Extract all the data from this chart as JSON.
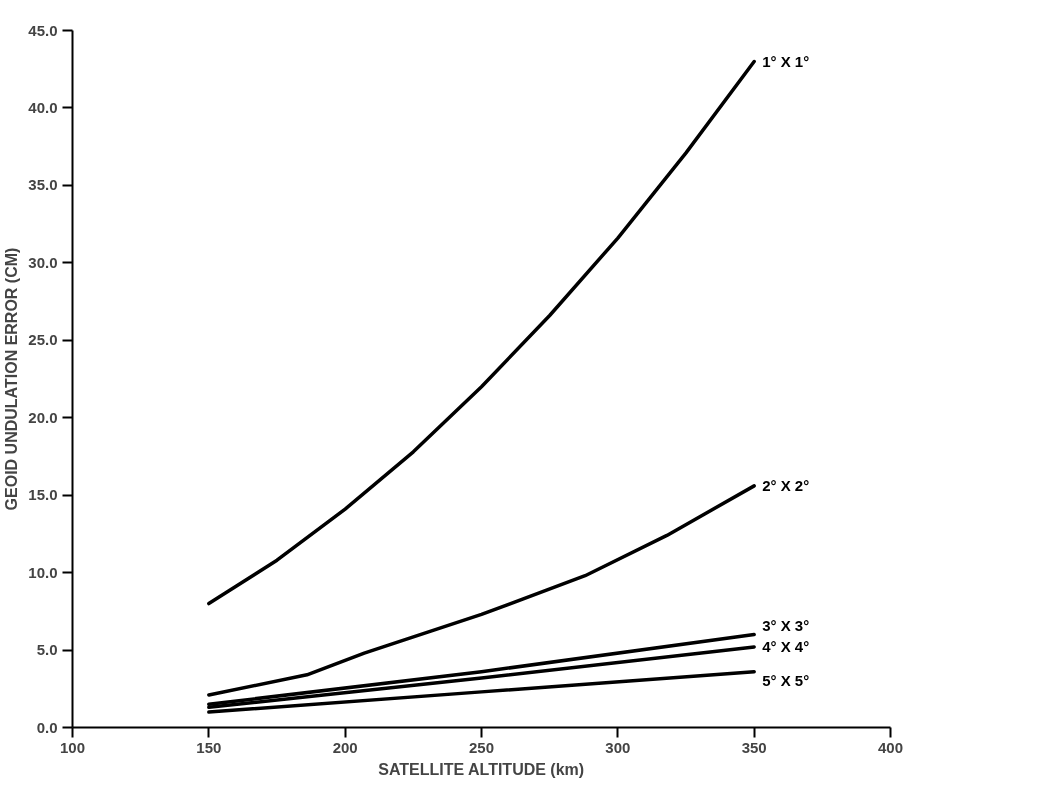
{
  "chart_data": {
    "type": "line",
    "xlabel": "SATELLITE ALTITUDE (km)",
    "ylabel": "GEOID UNDULATION ERROR (CM)",
    "xlim": [
      100,
      400
    ],
    "xticks": [
      100,
      150,
      200,
      250,
      300,
      350,
      400
    ],
    "ylim": [
      0,
      45
    ],
    "yticks": [
      {
        "value": 0,
        "label": "0.0"
      },
      {
        "value": 5,
        "label": "5.0"
      },
      {
        "value": 10,
        "label": "10.0"
      },
      {
        "value": 15,
        "label": "15.0"
      },
      {
        "value": 20,
        "label": "20.0"
      },
      {
        "value": 25,
        "label": "25.0"
      },
      {
        "value": 30,
        "label": "30.0"
      },
      {
        "value": 35,
        "label": "35.0"
      },
      {
        "value": 40,
        "label": "40.0"
      },
      {
        "value": 45,
        "label": "45.0"
      }
    ],
    "grid": false,
    "marker": "none",
    "line_style": "solid",
    "series": [
      {
        "name": "1° X 1°",
        "color": "#000000",
        "x": [
          150,
          175,
          200,
          225,
          250,
          275,
          300,
          325,
          350
        ],
        "values": [
          8.0,
          10.8,
          14.1,
          17.8,
          22.0,
          26.6,
          31.6,
          37.1,
          43.0
        ]
      },
      {
        "name": "2° X 2°",
        "color": "#000000",
        "x": [
          150,
          186,
          207,
          250,
          288,
          318,
          350
        ],
        "values": [
          2.1,
          3.4,
          4.8,
          7.3,
          9.8,
          12.4,
          15.6
        ]
      },
      {
        "name": "3° X 3°",
        "color": "#000000",
        "x": [
          150,
          250,
          350
        ],
        "values": [
          1.5,
          3.6,
          6.0
        ]
      },
      {
        "name": "4° X 4°",
        "color": "#000000",
        "x": [
          150,
          250,
          350
        ],
        "values": [
          1.3,
          3.2,
          5.2
        ]
      },
      {
        "name": "5° X 5°",
        "color": "#000000",
        "x": [
          150,
          250,
          350
        ],
        "values": [
          1.0,
          2.3,
          3.6
        ]
      }
    ]
  }
}
